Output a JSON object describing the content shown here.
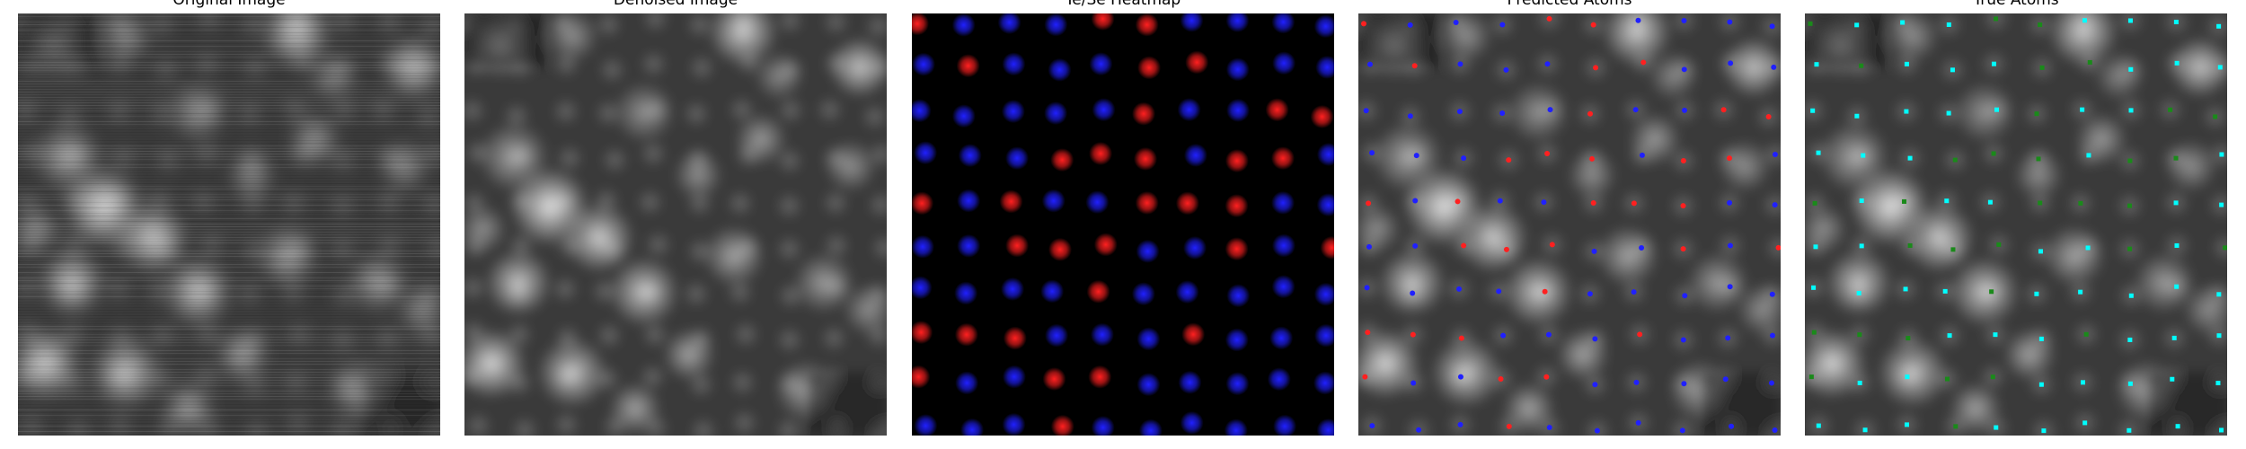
{
  "figure": {
    "panels": [
      {
        "title": "Original Image"
      },
      {
        "title": "Denoised Image"
      },
      {
        "title": "Te/Se Heatmap"
      },
      {
        "title": "Predicted Atoms"
      },
      {
        "title": "True Atoms"
      }
    ]
  },
  "colors": {
    "te": "#ff2020",
    "se": "#2020ff",
    "true_a": "#00ffff",
    "true_b": "#1a8a1a",
    "heatmap_bg": "#000000"
  }
}
